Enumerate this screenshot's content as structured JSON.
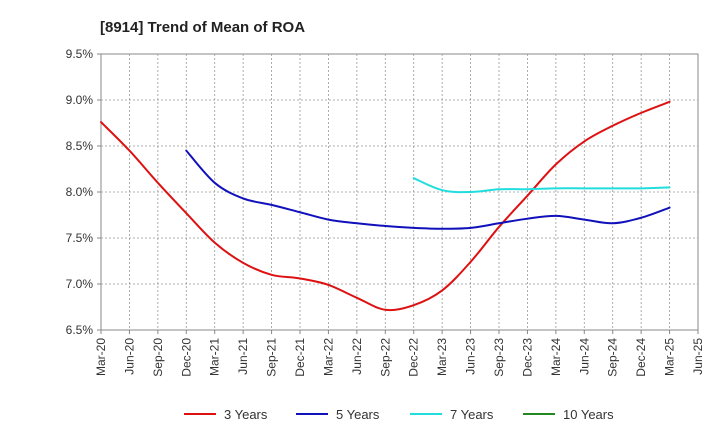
{
  "chart_data": {
    "type": "line",
    "title": "[8914]  Trend of Mean of ROA",
    "xlabel": "",
    "ylabel": "",
    "ylim": [
      6.5,
      9.5
    ],
    "y_ticks": [
      "6.5%",
      "7.0%",
      "7.5%",
      "8.0%",
      "8.5%",
      "9.0%",
      "9.5%"
    ],
    "x_ticks": [
      "Mar-20",
      "Jun-20",
      "Sep-20",
      "Dec-20",
      "Mar-21",
      "Jun-21",
      "Sep-21",
      "Dec-21",
      "Mar-22",
      "Jun-22",
      "Sep-22",
      "Dec-22",
      "Mar-23",
      "Jun-23",
      "Sep-23",
      "Dec-23",
      "Mar-24",
      "Jun-24",
      "Sep-24",
      "Dec-24",
      "Mar-25",
      "Jun-25"
    ],
    "grid": true,
    "legend_position": "bottom",
    "series": [
      {
        "name": "3 Years",
        "color": "#dd1111",
        "start_index": 0,
        "values": [
          8.76,
          8.45,
          8.1,
          7.77,
          7.45,
          7.23,
          7.1,
          7.06,
          6.99,
          6.85,
          6.72,
          6.77,
          6.93,
          7.24,
          7.62,
          7.96,
          8.3,
          8.55,
          8.72,
          8.86,
          8.98
        ]
      },
      {
        "name": "5 Years",
        "color": "#1111bb",
        "start_index": 3,
        "values": [
          8.45,
          8.1,
          7.93,
          7.86,
          7.78,
          7.7,
          7.66,
          7.63,
          7.61,
          7.6,
          7.61,
          7.66,
          7.71,
          7.74,
          7.7,
          7.66,
          7.72,
          7.83
        ]
      },
      {
        "name": "7 Years",
        "color": "#22dddd",
        "start_index": 11,
        "values": [
          8.15,
          8.02,
          8.0,
          8.03,
          8.03,
          8.04,
          8.04,
          8.04,
          8.04,
          8.05
        ]
      },
      {
        "name": "10 Years",
        "color": "#228822",
        "start_index": 0,
        "values": []
      }
    ]
  }
}
